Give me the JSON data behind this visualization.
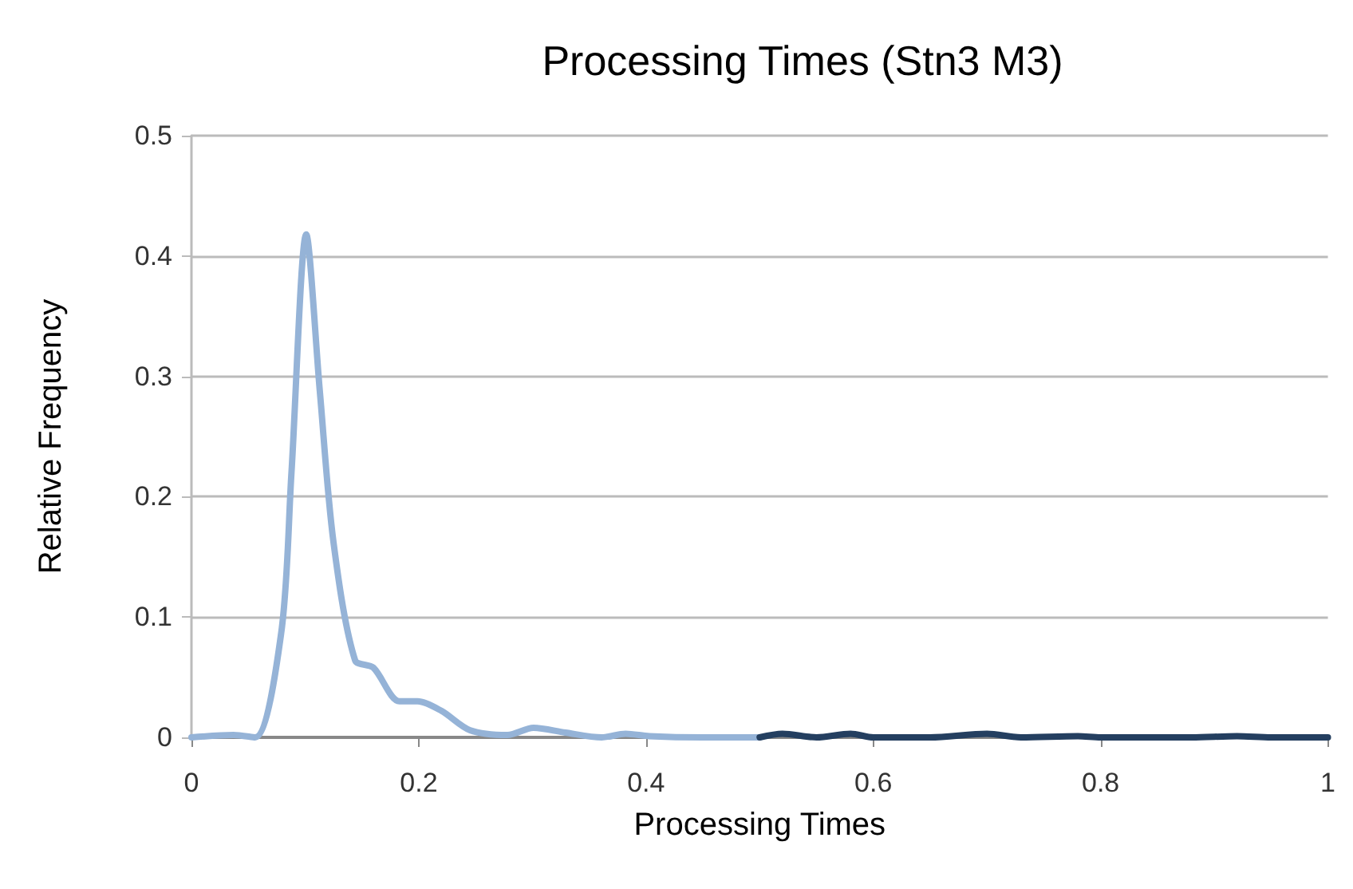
{
  "chart_data": {
    "type": "line",
    "title": "Processing Times (Stn3 M3)",
    "xlabel": "Processing Times",
    "ylabel": "Relative Frequency",
    "xlim": [
      0,
      1
    ],
    "xticks": [
      0,
      0.2,
      0.4,
      0.6,
      0.8,
      1
    ],
    "ylim": [
      0,
      0.5
    ],
    "yticks": [
      0,
      0.1,
      0.2,
      0.3,
      0.4,
      0.5
    ],
    "grid": "y",
    "marker": "none",
    "line_style": "solid",
    "series": [
      {
        "color": "#95b3d7",
        "x": [
          0,
          0.037,
          0.056,
          0.079,
          0.088,
          0.101,
          0.113,
          0.125,
          0.144,
          0.16,
          0.183,
          0.199,
          0.22,
          0.245,
          0.278,
          0.301,
          0.329,
          0.361,
          0.382,
          0.403,
          0.45,
          0.5
        ],
        "values": [
          0,
          0.002,
          0,
          0.087,
          0.22,
          0.418,
          0.287,
          0.162,
          0.064,
          0.058,
          0.03,
          0.03,
          0.022,
          0.006,
          0.002,
          0.008,
          0.004,
          0,
          0.003,
          0.001,
          0,
          0
        ]
      },
      {
        "color": "#243f60",
        "x": [
          0.5,
          0.52,
          0.55,
          0.58,
          0.6,
          0.65,
          0.7,
          0.73,
          0.78,
          0.8,
          0.88,
          0.92,
          0.95,
          1
        ],
        "values": [
          0,
          0.003,
          0,
          0.003,
          0,
          0,
          0.003,
          0,
          0.001,
          0,
          0,
          0.001,
          0,
          0
        ]
      }
    ]
  }
}
